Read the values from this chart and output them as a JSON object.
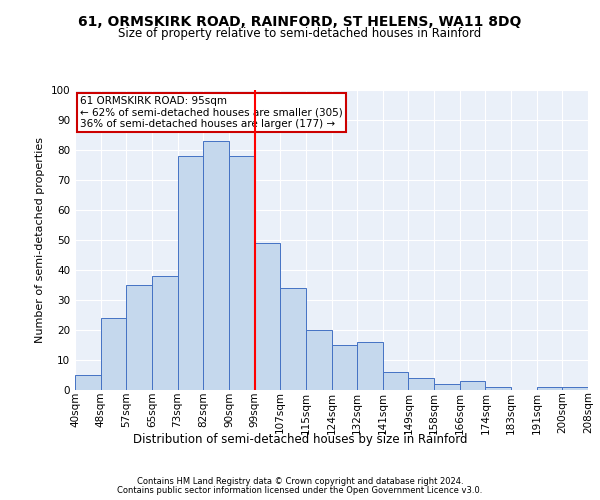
{
  "title": "61, ORMSKIRK ROAD, RAINFORD, ST HELENS, WA11 8DQ",
  "subtitle": "Size of property relative to semi-detached houses in Rainford",
  "xlabel": "Distribution of semi-detached houses by size in Rainford",
  "ylabel": "Number of semi-detached properties",
  "footer1": "Contains HM Land Registry data © Crown copyright and database right 2024.",
  "footer2": "Contains public sector information licensed under the Open Government Licence v3.0.",
  "annotation_line1": "61 ORMSKIRK ROAD: 95sqm",
  "annotation_line2": "← 62% of semi-detached houses are smaller (305)",
  "annotation_line3": "36% of semi-detached houses are larger (177) →",
  "bar_values": [
    5,
    24,
    35,
    38,
    78,
    83,
    78,
    49,
    34,
    20,
    15,
    16,
    6,
    4,
    2,
    3,
    1,
    0,
    1,
    1
  ],
  "bin_labels": [
    "40sqm",
    "48sqm",
    "57sqm",
    "65sqm",
    "73sqm",
    "82sqm",
    "90sqm",
    "99sqm",
    "107sqm",
    "115sqm",
    "124sqm",
    "132sqm",
    "141sqm",
    "149sqm",
    "158sqm",
    "166sqm",
    "174sqm",
    "183sqm",
    "191sqm",
    "200sqm",
    "208sqm"
  ],
  "bar_color": "#c5d8ed",
  "bar_edge_color": "#4472c4",
  "bg_color": "#eaf0f9",
  "grid_color": "#ffffff",
  "vline_color": "#ff0000",
  "annotation_box_color": "#cc0000",
  "ylim": [
    0,
    100
  ],
  "yticks": [
    0,
    10,
    20,
    30,
    40,
    50,
    60,
    70,
    80,
    90,
    100
  ],
  "title_fontsize": 10,
  "subtitle_fontsize": 8.5,
  "ylabel_fontsize": 8,
  "xlabel_fontsize": 8.5,
  "tick_fontsize": 7.5,
  "annotation_fontsize": 7.5,
  "footer_fontsize": 6
}
